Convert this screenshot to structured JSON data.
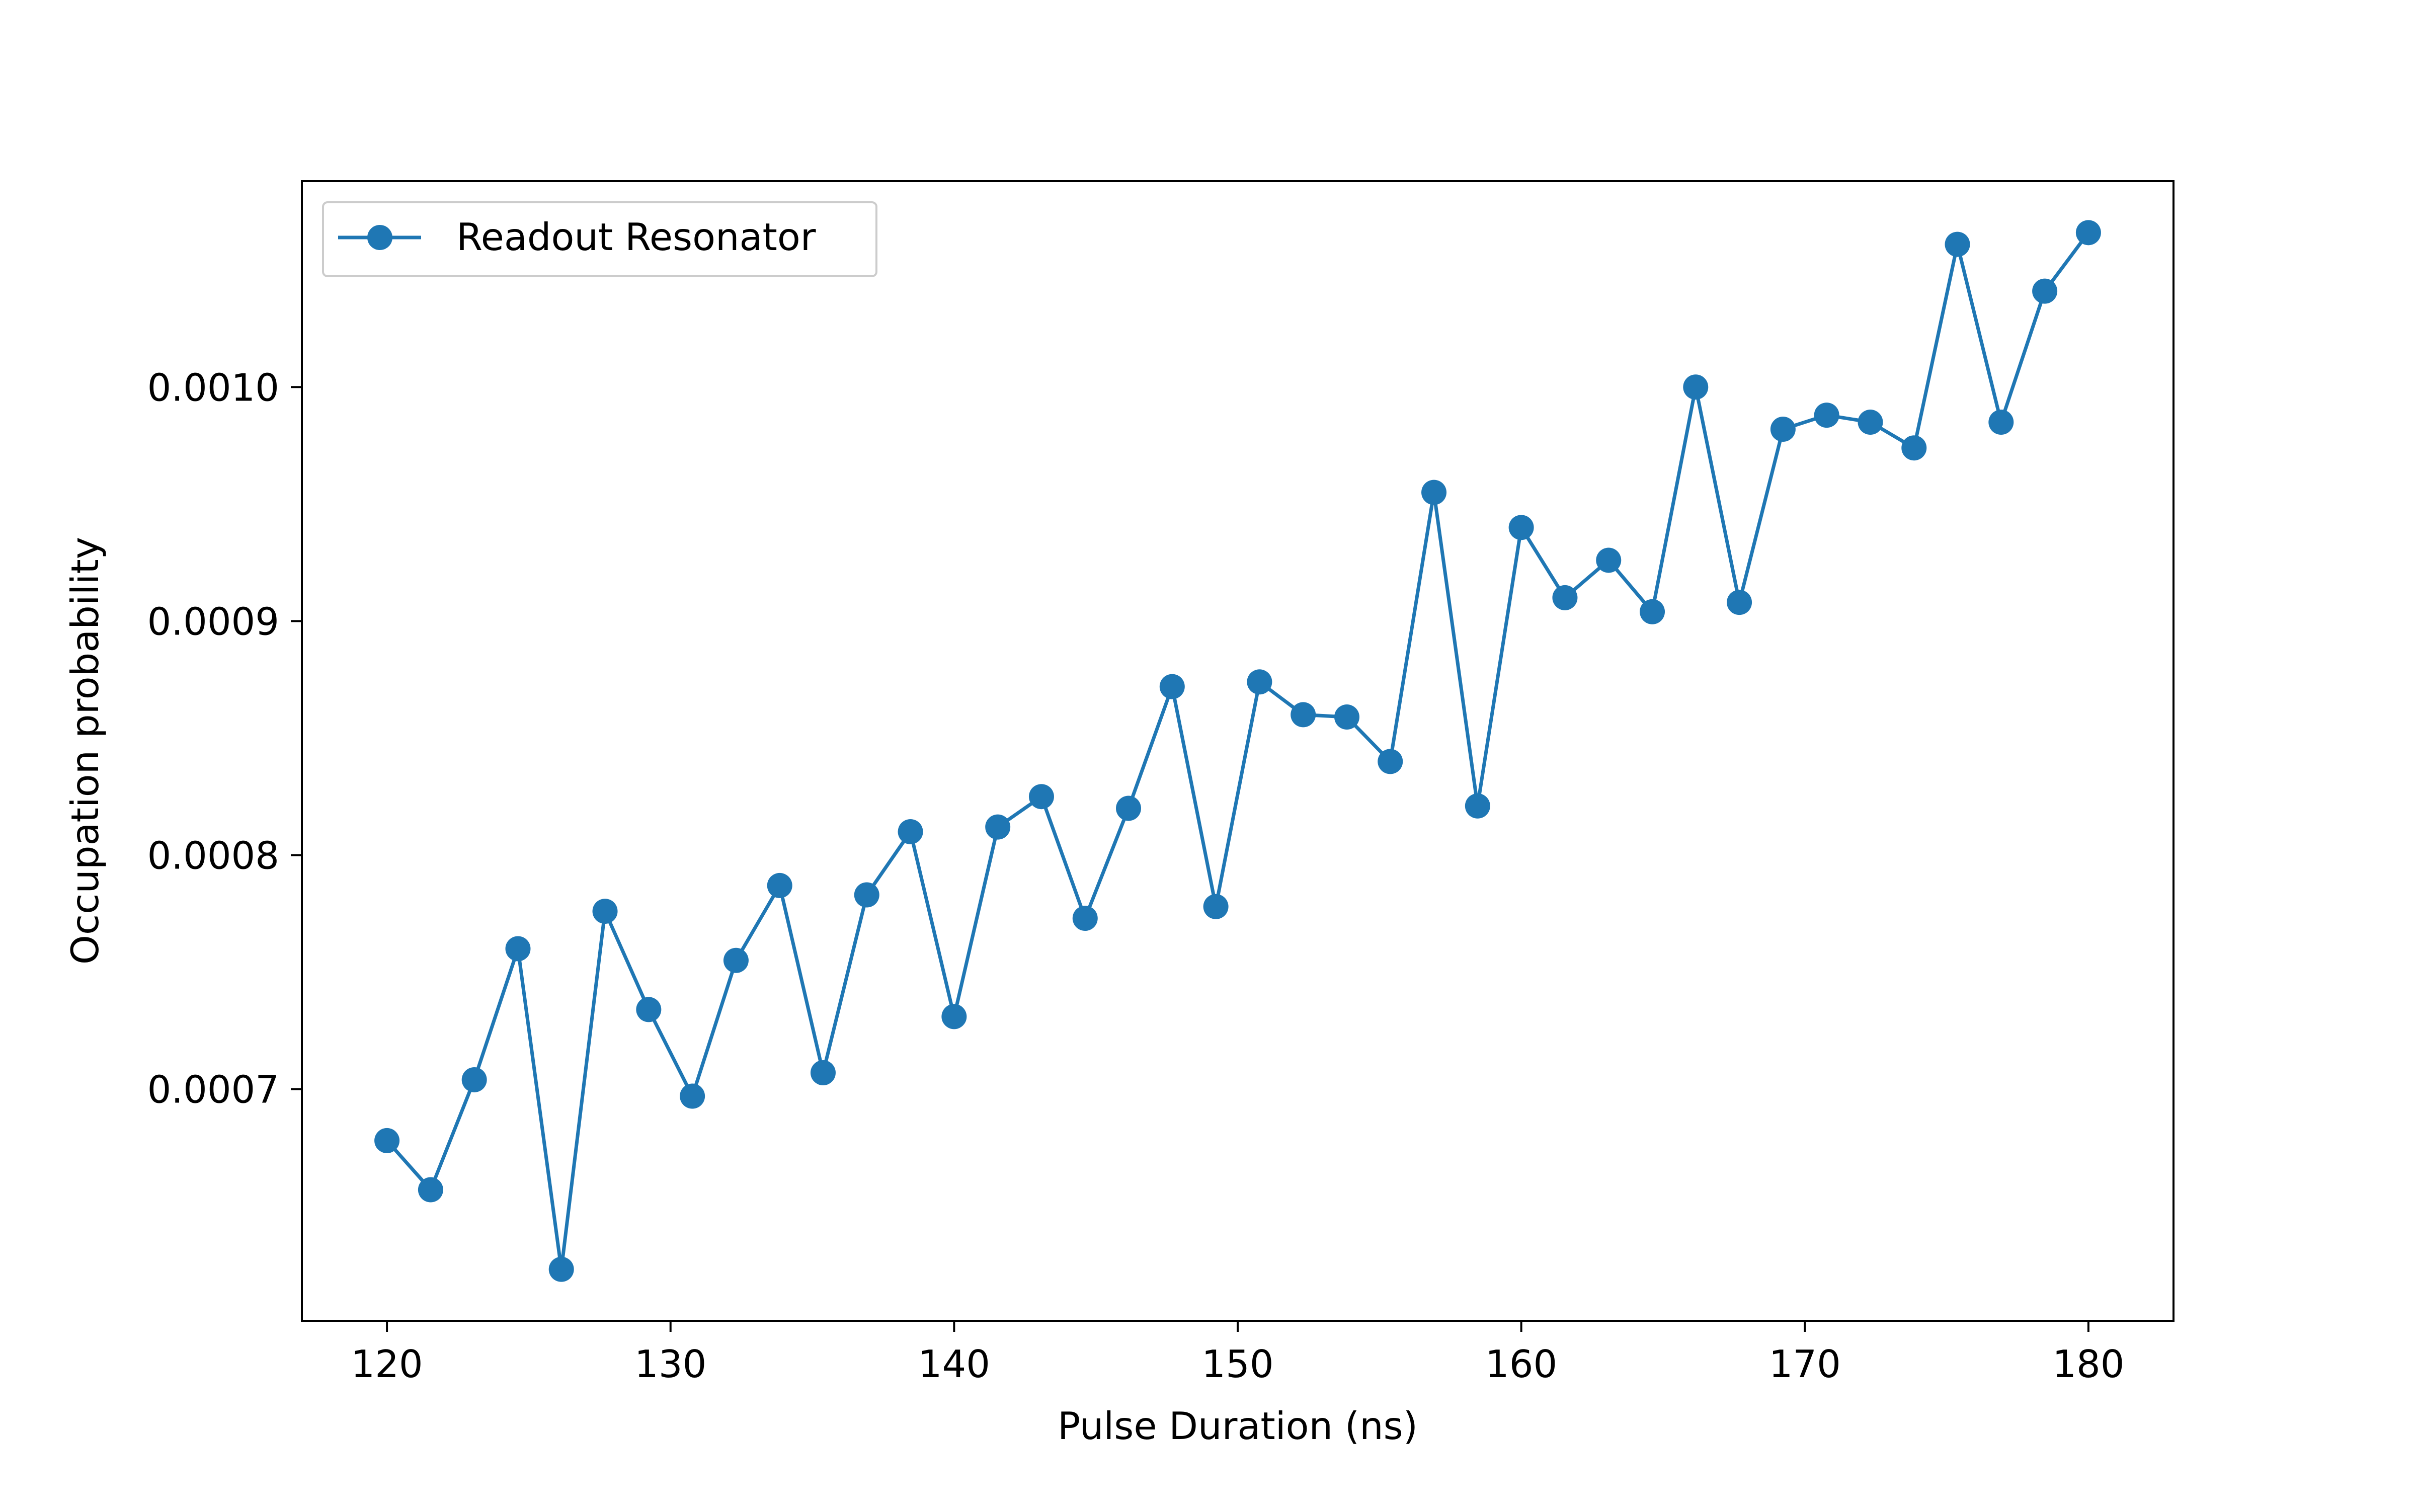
{
  "chart_data": {
    "type": "line",
    "title": "",
    "xlabel": "Pulse Duration (ns)",
    "ylabel": "Occupation probability",
    "xlim": [
      117,
      183
    ],
    "ylim": [
      0.000601,
      0.001088
    ],
    "x_ticks": [
      120,
      130,
      140,
      150,
      160,
      170,
      180
    ],
    "x_tick_labels": [
      "120",
      "130",
      "140",
      "150",
      "160",
      "170",
      "180"
    ],
    "y_ticks": [
      0.0007,
      0.0008,
      0.0009,
      0.001
    ],
    "y_tick_labels": [
      "0.0007",
      "0.0008",
      "0.0009",
      "0.0010"
    ],
    "grid": false,
    "legend_position": "top-left",
    "series": [
      {
        "name": "Readout Resonator",
        "color": "#1f77b4",
        "marker": "circle",
        "x": [
          120.0,
          121.54,
          123.08,
          124.62,
          126.15,
          127.69,
          129.23,
          130.77,
          132.31,
          133.85,
          135.38,
          136.92,
          138.46,
          140.0,
          141.54,
          143.08,
          144.62,
          146.15,
          147.69,
          149.23,
          150.77,
          152.31,
          153.85,
          155.38,
          156.92,
          158.46,
          160.0,
          161.54,
          163.08,
          164.62,
          166.15,
          167.69,
          169.23,
          170.77,
          172.31,
          173.85,
          175.38,
          176.92,
          178.46,
          180.0
        ],
        "y": [
          0.000678,
          0.000657,
          0.000704,
          0.00076,
          0.000623,
          0.000776,
          0.000734,
          0.000697,
          0.000755,
          0.000787,
          0.000707,
          0.000783,
          0.00081,
          0.000731,
          0.000812,
          0.000825,
          0.000773,
          0.00082,
          0.000872,
          0.000778,
          0.000874,
          0.00086,
          0.000859,
          0.00084,
          0.000955,
          0.000821,
          0.00094,
          0.00091,
          0.000926,
          0.000904,
          0.001,
          0.000908,
          0.000982,
          0.000988,
          0.000985,
          0.000974,
          0.001061,
          0.000985,
          0.001041,
          0.001066
        ]
      }
    ]
  }
}
